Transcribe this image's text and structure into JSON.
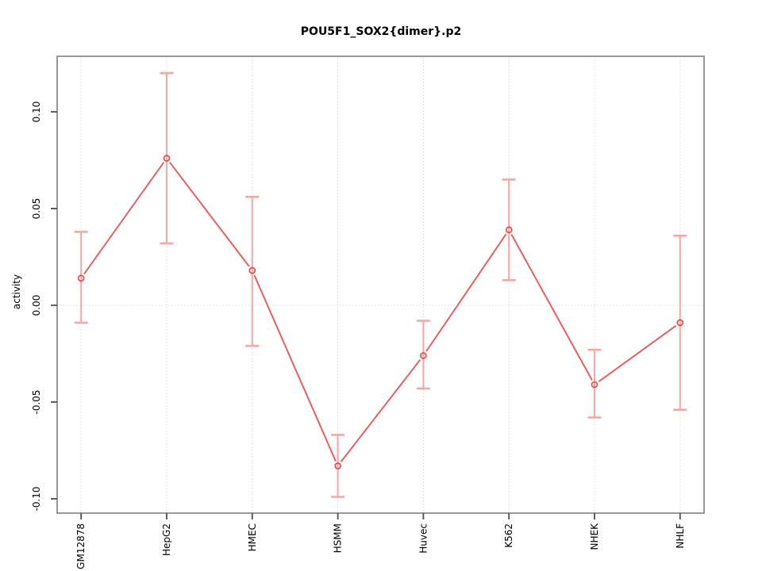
{
  "chart_data": {
    "type": "line",
    "title": "POU5F1_SOX2{dimer}.p2",
    "xlabel": "",
    "ylabel": "activity",
    "categories": [
      "GM12878",
      "HepG2",
      "HMEC",
      "HSMM",
      "Huvec",
      "K562",
      "NHEK",
      "NHLF"
    ],
    "series": [
      {
        "name": "activity",
        "marker": "open-circle",
        "values": [
          0.014,
          0.076,
          0.018,
          -0.083,
          -0.026,
          0.039,
          -0.041,
          -0.009
        ],
        "error_low": [
          -0.009,
          0.032,
          -0.021,
          -0.099,
          -0.043,
          0.013,
          -0.058,
          -0.054
        ],
        "error_high": [
          0.038,
          0.12,
          0.056,
          -0.067,
          -0.008,
          0.065,
          -0.023,
          0.036
        ]
      }
    ],
    "ylim": [
      -0.1074,
      0.1287
    ],
    "xlim": [
      0.72,
      8.28
    ],
    "yticks": [
      {
        "value": -0.1,
        "label": "-0.10"
      },
      {
        "value": -0.05,
        "label": "-0.05"
      },
      {
        "value": 0,
        "label": "0.00"
      },
      {
        "value": 0.05,
        "label": "0.05"
      },
      {
        "value": 0.1,
        "label": "0.10"
      }
    ],
    "grid": {
      "vertical_at_categories": true,
      "horizontal_at_zero": true,
      "style": "dotted"
    },
    "legend": "none",
    "colors": {
      "line": "#ff4a4a",
      "point": "#ff3b3b",
      "error_bar": "#ffa2a2",
      "grid": "#d8d8d8",
      "frame": "#8c8c8c",
      "tick": "#4d4d4d",
      "text": "#000000"
    }
  }
}
